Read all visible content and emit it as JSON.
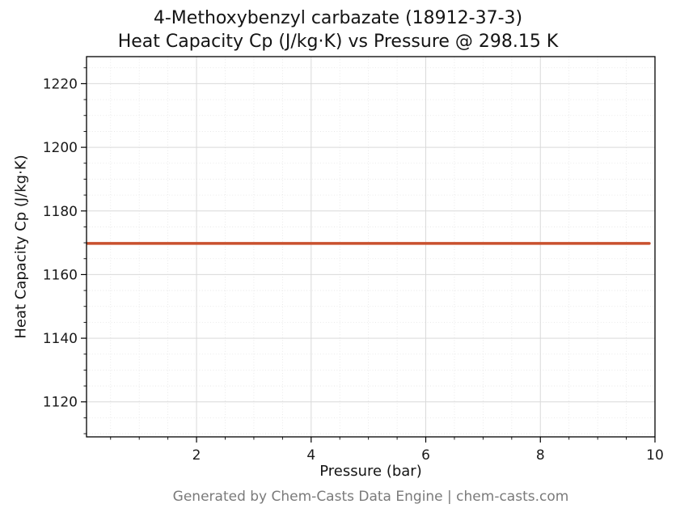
{
  "figure": {
    "footer": "Generated by Chem-Casts Data Engine | chem-casts.com"
  },
  "chart_data": {
    "type": "line",
    "title_line1": "4-Methoxybenzyl carbazate (18912-37-3)",
    "title_line2": "Heat Capacity Cp (J/kg·K) vs Pressure @ 298.15 K",
    "xlabel": "Pressure (bar)",
    "ylabel": "Heat Capacity Cp (J/kg·K)",
    "series": [
      {
        "name": "heat-capacity-cp",
        "x": [
          0.1,
          9.9
        ],
        "y": [
          1169.8,
          1169.8
        ],
        "note": "constant Cp ≈ 1169.8 J/kg·K across 0.1–9.9 bar at 298.15 K"
      }
    ],
    "xlim": [
      0.08,
      10.0
    ],
    "ylim": [
      1109.0,
      1228.5
    ],
    "x_ticks_major": [
      2,
      4,
      6,
      8,
      10
    ],
    "x_tick_labels": [
      "2",
      "4",
      "6",
      "8",
      "10"
    ],
    "x_minor_step": 0.5,
    "y_ticks_major": [
      1120,
      1140,
      1160,
      1180,
      1200,
      1220
    ],
    "y_tick_labels": [
      "1120",
      "1140",
      "1160",
      "1180",
      "1200",
      "1220"
    ],
    "y_minor_step": 5,
    "grid": true,
    "legend_position": "none",
    "line_color": "#c9512e",
    "line_width": 3.5,
    "grid_major_color": "#d9d9d9",
    "grid_minor_color": "#e4e4e4",
    "border_color": "#000000"
  }
}
